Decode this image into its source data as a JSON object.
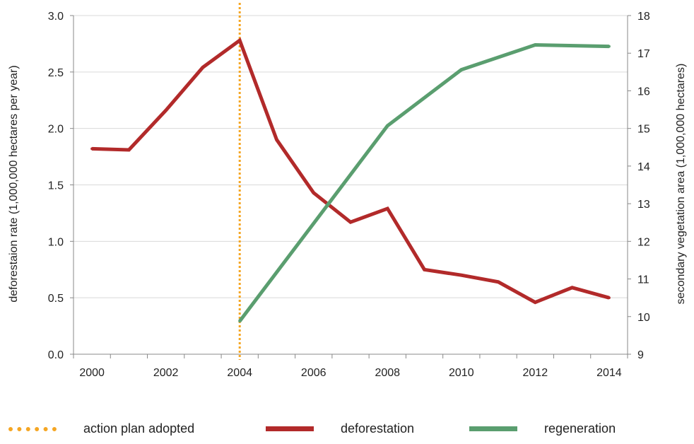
{
  "chart_data": {
    "type": "line",
    "title": "",
    "xlabel": "",
    "ylabel_left": "deforestaion rate (1,000,000 hectares per year)",
    "ylabel_right": "secondary vegetation area (1,000,000 hectares)",
    "xlim": [
      1999.5,
      2014.5
    ],
    "ylim_left": [
      0,
      3
    ],
    "ylim_right": [
      9,
      18
    ],
    "x_ticks": [
      "2000",
      "2002",
      "2004",
      "2006",
      "2008",
      "2010",
      "2012",
      "2014"
    ],
    "y_left_ticks": [
      "0.0",
      "0.5",
      "1.0",
      "1.5",
      "2.0",
      "2.5",
      "3.0"
    ],
    "y_right_ticks": [
      "9",
      "10",
      "11",
      "12",
      "13",
      "14",
      "15",
      "16",
      "17",
      "18"
    ],
    "grid": "horizontal",
    "legend_position": "bottom",
    "series": [
      {
        "name": "deforestation",
        "axis": "left",
        "color": "#b22a2a",
        "x": [
          2000,
          2001,
          2002,
          2003,
          2004,
          2005,
          2006,
          2007,
          2008,
          2009,
          2010,
          2011,
          2012,
          2013,
          2014
        ],
        "values": [
          1.82,
          1.81,
          2.16,
          2.54,
          2.78,
          1.9,
          1.43,
          1.17,
          1.29,
          0.75,
          0.7,
          0.64,
          0.46,
          0.59,
          0.5
        ]
      },
      {
        "name": "regeneration",
        "axis": "right",
        "color": "#5a9e6f",
        "x": [
          2004,
          2008,
          2010,
          2012,
          2014
        ],
        "values": [
          9.88,
          15.07,
          16.56,
          17.22,
          17.18
        ]
      }
    ],
    "annotations": [
      {
        "name": "action plan adopted",
        "x": 2004,
        "style": "dotted-vertical",
        "color": "#f5a623"
      }
    ]
  },
  "legend": {
    "items": [
      {
        "label": "action plan adopted",
        "color": "#f5a623",
        "style": "dotted"
      },
      {
        "label": "deforestation",
        "color": "#b22a2a",
        "style": "solid"
      },
      {
        "label": "regeneration",
        "color": "#5a9e6f",
        "style": "solid"
      }
    ]
  }
}
